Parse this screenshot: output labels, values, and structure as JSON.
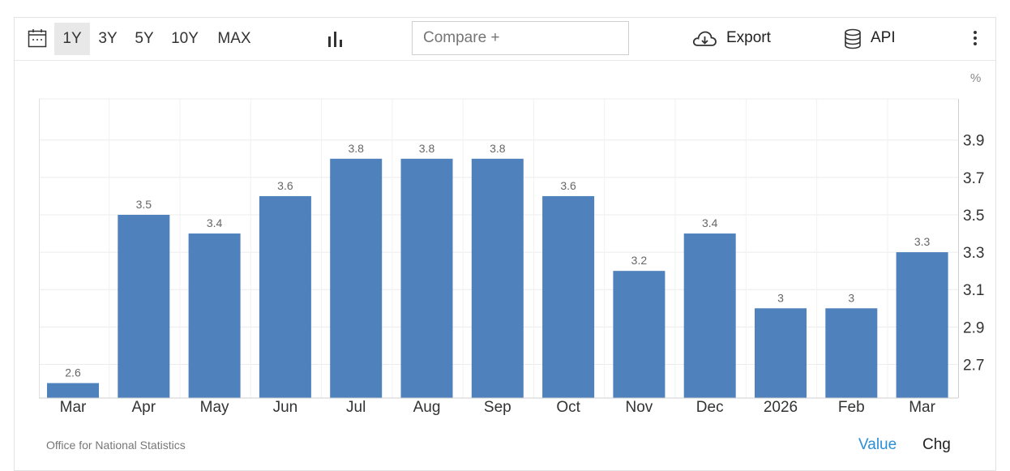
{
  "toolbar": {
    "ranges": [
      "1Y",
      "3Y",
      "5Y",
      "10Y",
      "MAX"
    ],
    "active_range": "1Y",
    "compare_placeholder": "Compare +",
    "export_label": "Export",
    "api_label": "API"
  },
  "footer": {
    "source": "Office for National Statistics",
    "value_label": "Value",
    "chg_label": "Chg"
  },
  "colors": {
    "bar": "#4f81bd",
    "value_link": "#2a8fd6"
  },
  "chart_data": {
    "type": "bar",
    "unit_label": "%",
    "categories": [
      "Mar",
      "Apr",
      "May",
      "Jun",
      "Jul",
      "Aug",
      "Sep",
      "Oct",
      "Nov",
      "Dec",
      "2026",
      "Feb",
      "Mar"
    ],
    "values": [
      2.6,
      3.5,
      3.4,
      3.6,
      3.8,
      3.8,
      3.8,
      3.6,
      3.2,
      3.4,
      3.0,
      3.0,
      3.3
    ],
    "data_labels": [
      "2.6",
      "3.5",
      "3.4",
      "3.6",
      "3.8",
      "3.8",
      "3.8",
      "3.6",
      "3.2",
      "3.4",
      "3",
      "3",
      "3.3"
    ],
    "y_ticks": [
      "2.7",
      "2.9",
      "3.1",
      "3.3",
      "3.5",
      "3.7",
      "3.9"
    ],
    "ylim": [
      2.52,
      4.12
    ],
    "y_axis_side": "right",
    "grid": true,
    "legend": "none"
  }
}
